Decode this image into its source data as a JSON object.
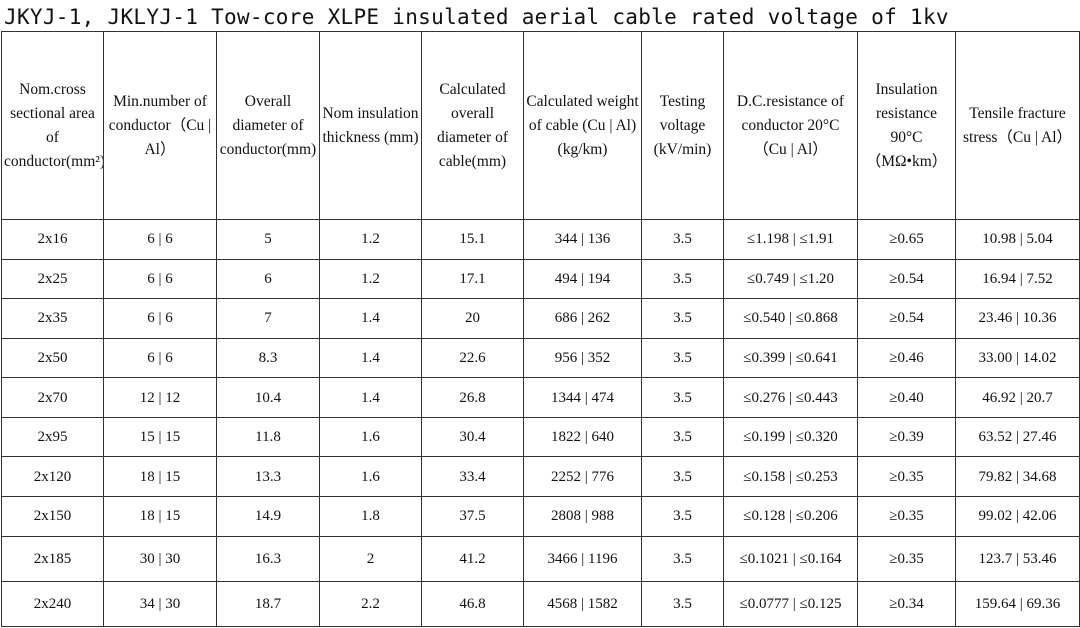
{
  "title": "JKYJ-1, JKLYJ-1 Tow-core XLPE insulated aerial cable rated voltage of 1kv",
  "headers": [
    "Nom.cross sectional area of conductor(mm²)",
    "Min.number of conductor（Cu | Al）",
    "Overall diameter of conductor(mm)",
    "Nom insulation thickness (mm)",
    "Calculated overall diameter of cable(mm)",
    "Calculated weight of cable (Cu | Al)(kg/km)",
    "Testing voltage (kV/min)",
    "D.C.resistance of conductor 20°C（Cu | Al）",
    "Insulation resistance 90°C （MΩ•km）",
    "Tensile fracture stress（Cu | Al）"
  ],
  "rows": [
    [
      "2x16",
      "6 | 6",
      "5",
      "1.2",
      "15.1",
      "344 | 136",
      "3.5",
      "≤1.198 | ≤1.91",
      "≥0.65",
      "10.98 | 5.04"
    ],
    [
      "2x25",
      "6 | 6",
      "6",
      "1.2",
      "17.1",
      "494 | 194",
      "3.5",
      "≤0.749 | ≤1.20",
      "≥0.54",
      "16.94 | 7.52"
    ],
    [
      "2x35",
      "6 | 6",
      "7",
      "1.4",
      "20",
      "686 | 262",
      "3.5",
      "≤0.540 | ≤0.868",
      "≥0.54",
      "23.46 | 10.36"
    ],
    [
      "2x50",
      "6 | 6",
      "8.3",
      "1.4",
      "22.6",
      "956 | 352",
      "3.5",
      "≤0.399 | ≤0.641",
      "≥0.46",
      "33.00 | 14.02"
    ],
    [
      "2x70",
      "12 | 12",
      "10.4",
      "1.4",
      "26.8",
      "1344 | 474",
      "3.5",
      "≤0.276 | ≤0.443",
      "≥0.40",
      "46.92 | 20.7"
    ],
    [
      "2x95",
      "15 | 15",
      "11.8",
      "1.6",
      "30.4",
      "1822 | 640",
      "3.5",
      "≤0.199 | ≤0.320",
      "≥0.39",
      "63.52 | 27.46"
    ],
    [
      "2x120",
      "18 | 15",
      "13.3",
      "1.6",
      "33.4",
      "2252 | 776",
      "3.5",
      "≤0.158 | ≤0.253",
      "≥0.35",
      "79.82 | 34.68"
    ],
    [
      "2x150",
      "18 | 15",
      "14.9",
      "1.8",
      "37.5",
      "2808 | 988",
      "3.5",
      "≤0.128 | ≤0.206",
      "≥0.35",
      "99.02 | 42.06"
    ],
    [
      "2x185",
      "30 | 30",
      "16.3",
      "2",
      "41.2",
      "3466 | 1196",
      "3.5",
      "≤0.1021 | ≤0.164",
      "≥0.35",
      "123.7 | 53.46"
    ],
    [
      "2x240",
      "34 | 30",
      "18.7",
      "2.2",
      "46.8",
      "4568 | 1582",
      "3.5",
      "≤0.0777 | ≤0.125",
      "≥0.34",
      "159.64 | 69.36"
    ]
  ]
}
